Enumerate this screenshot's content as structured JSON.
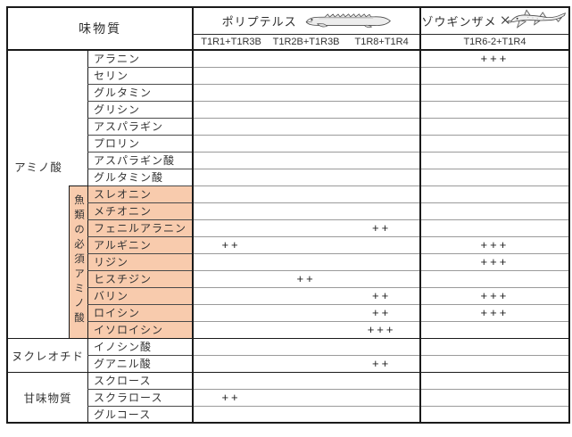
{
  "chart_data": {
    "type": "table",
    "title_col_header": "味物質",
    "species": [
      {
        "name": "ポリプテルス",
        "icon": "bichir-fish-icon",
        "receptors": [
          "T1R1+T1R3B",
          "T1R2B+T1R3B",
          "T1R8+T1R4"
        ]
      },
      {
        "name": "ゾウギンザメ",
        "icon": "elephant-shark-icon",
        "receptors": [
          "T1R6-2+T1R4"
        ]
      }
    ],
    "value_columns": [
      "T1R1+T1R3B",
      "T1R2B+T1R3B",
      "T1R8+T1R4",
      "T1R6-2+T1R4"
    ],
    "groups": [
      {
        "label": "アミノ酸",
        "subgroups": [
          {
            "label": "",
            "highlight": false,
            "rows": [
              {
                "name": "アラニン",
                "values": [
                  "",
                  "",
                  "",
                  "+++"
                ]
              },
              {
                "name": "セリン",
                "values": [
                  "",
                  "",
                  "",
                  ""
                ]
              },
              {
                "name": "グルタミン",
                "values": [
                  "",
                  "",
                  "",
                  ""
                ]
              },
              {
                "name": "グリシン",
                "values": [
                  "",
                  "",
                  "",
                  ""
                ]
              },
              {
                "name": "アスパラギン",
                "values": [
                  "",
                  "",
                  "",
                  ""
                ]
              },
              {
                "name": "プロリン",
                "values": [
                  "",
                  "",
                  "",
                  ""
                ]
              },
              {
                "name": "アスパラギン酸",
                "values": [
                  "",
                  "",
                  "",
                  ""
                ]
              },
              {
                "name": "グルタミン酸",
                "values": [
                  "",
                  "",
                  "",
                  ""
                ]
              }
            ]
          },
          {
            "label": "魚類の必須アミノ酸",
            "highlight": true,
            "rows": [
              {
                "name": "スレオニン",
                "values": [
                  "",
                  "",
                  "",
                  ""
                ]
              },
              {
                "name": "メチオニン",
                "values": [
                  "",
                  "",
                  "",
                  ""
                ]
              },
              {
                "name": "フェニルアラニン",
                "values": [
                  "",
                  "",
                  "++",
                  ""
                ]
              },
              {
                "name": "アルギニン",
                "values": [
                  "++",
                  "",
                  "",
                  "+++"
                ]
              },
              {
                "name": "リジン",
                "values": [
                  "",
                  "",
                  "",
                  "+++"
                ]
              },
              {
                "name": "ヒスチジン",
                "values": [
                  "",
                  "++",
                  "",
                  ""
                ]
              },
              {
                "name": "バリン",
                "values": [
                  "",
                  "",
                  "++",
                  "+++"
                ]
              },
              {
                "name": "ロイシン",
                "values": [
                  "",
                  "",
                  "++",
                  "+++"
                ]
              },
              {
                "name": "イソロイシン",
                "values": [
                  "",
                  "",
                  "+++",
                  ""
                ]
              }
            ]
          }
        ]
      },
      {
        "label": "ヌクレオチド",
        "subgroups": [
          {
            "label": "",
            "highlight": false,
            "rows": [
              {
                "name": "イノシン酸",
                "values": [
                  "",
                  "",
                  "",
                  ""
                ]
              },
              {
                "name": "グアニル酸",
                "values": [
                  "",
                  "",
                  "++",
                  ""
                ]
              }
            ]
          }
        ]
      },
      {
        "label": "甘味物質",
        "subgroups": [
          {
            "label": "",
            "highlight": false,
            "rows": [
              {
                "name": "スクロース",
                "values": [
                  "",
                  "",
                  "",
                  ""
                ]
              },
              {
                "name": "スクラロース",
                "values": [
                  "++",
                  "",
                  "",
                  ""
                ]
              },
              {
                "name": "グルコース",
                "values": [
                  "",
                  "",
                  "",
                  ""
                ]
              }
            ]
          }
        ]
      }
    ]
  },
  "colors": {
    "highlight": "#F8CBAD",
    "grid_light": "#9A9A9A",
    "grid_dark": "#1A1A1A",
    "text": "#333333",
    "background": "#FFFFFF"
  }
}
